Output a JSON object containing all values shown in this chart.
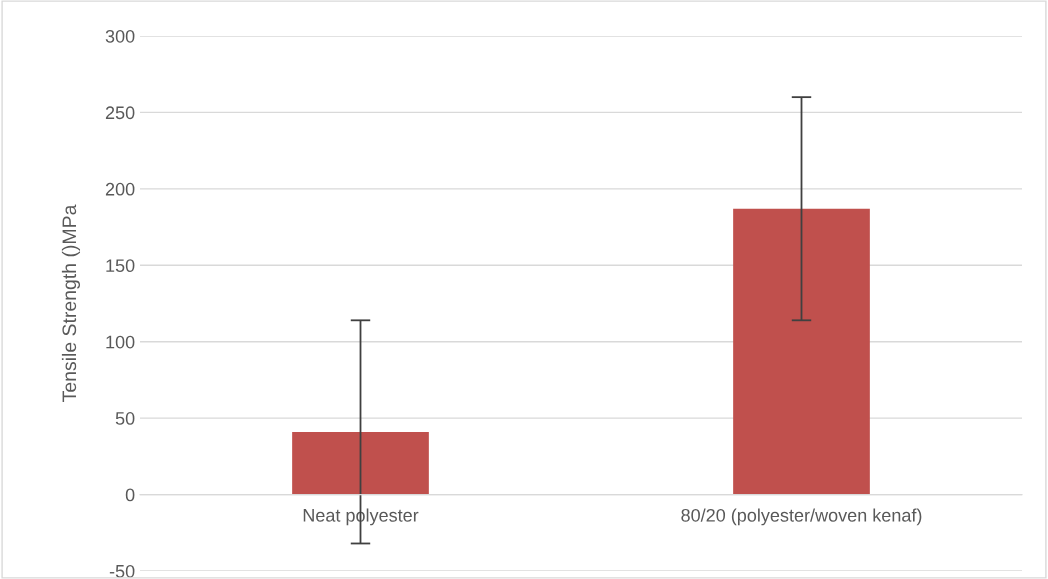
{
  "chart_data": {
    "type": "bar",
    "ylabel": "Tensile Strength ()MPa",
    "categories": [
      "Neat polyester",
      "80/20 (polyester/woven kenaf)"
    ],
    "values": [
      41,
      187
    ],
    "errors": [
      73,
      73
    ],
    "color": "#c0504d",
    "ylim": [
      -50,
      300
    ],
    "yticks": [
      -50,
      0,
      50,
      100,
      150,
      200,
      250,
      300
    ],
    "grid": "y"
  }
}
